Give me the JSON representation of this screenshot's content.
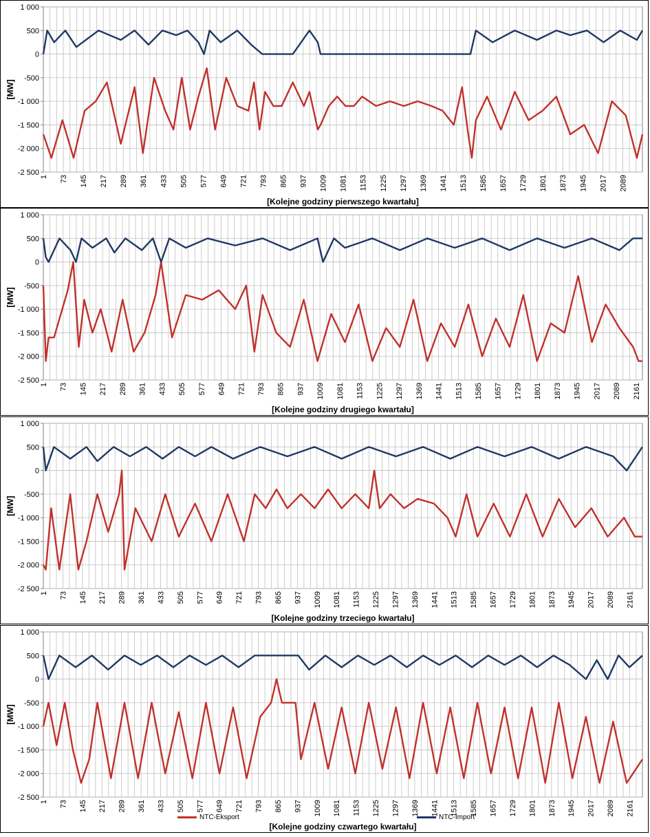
{
  "colors": {
    "export": "#C0312B",
    "import": "#1F3864",
    "grid": "#BFBFBF"
  },
  "chart_data": [
    {
      "type": "line",
      "title": "",
      "xlabel": "[Kolejne godziny pierwszego kwartału]",
      "ylabel": "[MW]",
      "ylim": [
        -2500,
        1000
      ],
      "yticks": [
        "1 000",
        "500",
        "0",
        "-500",
        "-1 000",
        "-1 500",
        "-2 000",
        "-2 500"
      ],
      "xlim": [
        1,
        2160
      ],
      "xtick_labels": [
        "1",
        "73",
        "145",
        "217",
        "289",
        "361",
        "433",
        "505",
        "577",
        "649",
        "721",
        "793",
        "865",
        "937",
        "1009",
        "1081",
        "1153",
        "1225",
        "1297",
        "1369",
        "1441",
        "1513",
        "1585",
        "1657",
        "1729",
        "1801",
        "1873",
        "1945",
        "2017",
        "2089"
      ],
      "grid": true,
      "legend": "bottom",
      "series": [
        {
          "name": "NTC-Eksport",
          "x": [
            1,
            30,
            70,
            110,
            150,
            190,
            230,
            280,
            330,
            360,
            400,
            440,
            470,
            500,
            530,
            560,
            590,
            620,
            660,
            700,
            740,
            760,
            780,
            800,
            830,
            860,
            900,
            940,
            960,
            990,
            1000,
            1030,
            1060,
            1090,
            1120,
            1150,
            1200,
            1250,
            1300,
            1350,
            1400,
            1440,
            1480,
            1510,
            1530,
            1545,
            1560,
            1600,
            1650,
            1700,
            1750,
            1800,
            1850,
            1900,
            1950,
            2000,
            2050,
            2100,
            2140,
            2160
          ],
          "values": [
            -1700,
            -2200,
            -1400,
            -2200,
            -1200,
            -1000,
            -600,
            -1900,
            -700,
            -2100,
            -500,
            -1200,
            -1600,
            -500,
            -1600,
            -900,
            -300,
            -1600,
            -500,
            -1100,
            -1200,
            -600,
            -1600,
            -800,
            -1100,
            -1100,
            -600,
            -1100,
            -800,
            -1600,
            -1500,
            -1100,
            -900,
            -1100,
            -1100,
            -900,
            -1100,
            -1000,
            -1100,
            -1000,
            -1100,
            -1200,
            -1500,
            -700,
            -1600,
            -2200,
            -1400,
            -900,
            -1600,
            -800,
            -1400,
            -1200,
            -900,
            -1700,
            -1500,
            -2100,
            -1000,
            -1300,
            -2200,
            -1700
          ]
        },
        {
          "name": "NTC-Import",
          "x": [
            1,
            15,
            40,
            80,
            120,
            200,
            280,
            330,
            380,
            430,
            480,
            520,
            560,
            580,
            600,
            640,
            700,
            750,
            790,
            810,
            900,
            960,
            990,
            1000,
            1060,
            1200,
            1400,
            1540,
            1560,
            1620,
            1700,
            1780,
            1850,
            1900,
            1960,
            2020,
            2080,
            2140,
            2160
          ],
          "values": [
            0,
            500,
            250,
            500,
            150,
            500,
            300,
            500,
            200,
            500,
            400,
            500,
            250,
            0,
            500,
            250,
            500,
            200,
            0,
            0,
            0,
            500,
            250,
            0,
            0,
            0,
            0,
            0,
            500,
            250,
            500,
            300,
            500,
            400,
            500,
            250,
            500,
            300,
            500
          ]
        }
      ]
    },
    {
      "type": "line",
      "title": "",
      "xlabel": "[Kolejne godziny drugiego kwartału]",
      "ylabel": "[MW]",
      "ylim": [
        -2500,
        1000
      ],
      "yticks": [
        "1 000",
        "500",
        "0",
        "-500",
        "-1 000",
        "-1 500",
        "-2 000",
        "-2 500"
      ],
      "xlim": [
        1,
        2184
      ],
      "xtick_labels": [
        "1",
        "73",
        "145",
        "217",
        "289",
        "361",
        "433",
        "505",
        "577",
        "649",
        "721",
        "793",
        "865",
        "937",
        "1009",
        "1081",
        "1153",
        "1225",
        "1297",
        "1369",
        "1441",
        "1513",
        "1585",
        "1657",
        "1729",
        "1801",
        "1873",
        "1945",
        "2017",
        "2089",
        "2161"
      ],
      "grid": true,
      "legend": "bottom",
      "series": [
        {
          "name": "NTC-Eksport",
          "x": [
            1,
            10,
            20,
            40,
            60,
            90,
            110,
            130,
            150,
            180,
            210,
            250,
            290,
            330,
            370,
            410,
            430,
            470,
            520,
            580,
            640,
            700,
            740,
            770,
            800,
            850,
            900,
            950,
            1000,
            1050,
            1100,
            1150,
            1200,
            1250,
            1300,
            1350,
            1400,
            1450,
            1500,
            1550,
            1600,
            1650,
            1700,
            1750,
            1800,
            1850,
            1900,
            1950,
            2000,
            2050,
            2100,
            2150,
            2170,
            2184
          ],
          "values": [
            -500,
            -2100,
            -1600,
            -1600,
            -1200,
            -600,
            0,
            -1800,
            -800,
            -1500,
            -1000,
            -1900,
            -800,
            -1900,
            -1500,
            -700,
            0,
            -1600,
            -700,
            -800,
            -600,
            -1000,
            -500,
            -1900,
            -700,
            -1500,
            -1800,
            -800,
            -2100,
            -1100,
            -1700,
            -900,
            -2100,
            -1400,
            -1800,
            -800,
            -2100,
            -1300,
            -1800,
            -900,
            -2000,
            -1200,
            -1800,
            -700,
            -2100,
            -1300,
            -1500,
            -300,
            -1700,
            -900,
            -1400,
            -1800,
            -2100,
            -2100
          ]
        },
        {
          "name": "NTC-Import",
          "x": [
            1,
            10,
            20,
            60,
            100,
            120,
            140,
            180,
            230,
            260,
            300,
            360,
            400,
            430,
            460,
            520,
            600,
            700,
            800,
            900,
            1000,
            1020,
            1060,
            1100,
            1200,
            1300,
            1400,
            1500,
            1600,
            1700,
            1800,
            1900,
            2000,
            2100,
            2150,
            2184
          ],
          "values": [
            500,
            100,
            0,
            500,
            250,
            0,
            500,
            300,
            500,
            200,
            500,
            250,
            500,
            0,
            500,
            300,
            500,
            350,
            500,
            250,
            500,
            0,
            500,
            300,
            500,
            250,
            500,
            300,
            500,
            250,
            500,
            300,
            500,
            250,
            500,
            500
          ]
        }
      ]
    },
    {
      "type": "line",
      "title": "",
      "xlabel": "[Kolejne godziny trzeciego kwartału]",
      "ylabel": "[MW]",
      "ylim": [
        -2500,
        1000
      ],
      "yticks": [
        "1 000",
        "500",
        "0",
        "-500",
        "-1 000",
        "-1 500",
        "-2 000",
        "-2 500"
      ],
      "xlim": [
        1,
        2208
      ],
      "xtick_labels": [
        "1",
        "73",
        "145",
        "217",
        "289",
        "361",
        "433",
        "505",
        "577",
        "649",
        "721",
        "793",
        "865",
        "937",
        "1009",
        "1081",
        "1153",
        "1225",
        "1297",
        "1369",
        "1441",
        "1513",
        "1585",
        "1657",
        "1729",
        "1801",
        "1873",
        "1945",
        "2017",
        "2089",
        "2161"
      ],
      "grid": true,
      "legend": "bottom",
      "series": [
        {
          "name": "NTC-Eksport",
          "x": [
            1,
            10,
            30,
            60,
            100,
            130,
            160,
            200,
            240,
            280,
            290,
            300,
            340,
            400,
            450,
            500,
            560,
            620,
            680,
            740,
            780,
            820,
            860,
            900,
            950,
            1000,
            1050,
            1100,
            1150,
            1200,
            1220,
            1240,
            1280,
            1330,
            1380,
            1440,
            1490,
            1520,
            1560,
            1600,
            1660,
            1720,
            1780,
            1840,
            1900,
            1960,
            2020,
            2080,
            2140,
            2180,
            2208
          ],
          "values": [
            -2000,
            -2100,
            -800,
            -2100,
            -500,
            -2100,
            -1500,
            -500,
            -1300,
            -500,
            0,
            -2100,
            -800,
            -1500,
            -500,
            -1400,
            -700,
            -1500,
            -500,
            -1500,
            -500,
            -800,
            -400,
            -800,
            -500,
            -800,
            -400,
            -800,
            -500,
            -800,
            0,
            -800,
            -500,
            -800,
            -600,
            -700,
            -1000,
            -1400,
            -500,
            -1400,
            -700,
            -1400,
            -500,
            -1400,
            -600,
            -1200,
            -800,
            -1400,
            -1000,
            -1400,
            -1400
          ]
        },
        {
          "name": "NTC-Import",
          "x": [
            1,
            10,
            40,
            100,
            160,
            200,
            260,
            320,
            380,
            440,
            500,
            560,
            620,
            700,
            800,
            900,
            1000,
            1100,
            1200,
            1300,
            1400,
            1500,
            1600,
            1700,
            1800,
            1900,
            2000,
            2100,
            2150,
            2208
          ],
          "values": [
            500,
            0,
            500,
            250,
            500,
            200,
            500,
            300,
            500,
            250,
            500,
            300,
            500,
            250,
            500,
            300,
            500,
            250,
            500,
            300,
            500,
            250,
            500,
            300,
            500,
            250,
            500,
            300,
            0,
            500
          ]
        }
      ]
    },
    {
      "type": "line",
      "title": "",
      "xlabel": "[Kolejne godziny czwartego kwartału]",
      "ylabel": "[MW]",
      "ylim": [
        -2500,
        1000
      ],
      "yticks": [
        "1 000",
        "500",
        "0",
        "-500",
        "-1 000",
        "-1 500",
        "-2 000",
        "-2 500"
      ],
      "xlim": [
        1,
        2208
      ],
      "xtick_labels": [
        "1",
        "73",
        "145",
        "217",
        "289",
        "361",
        "433",
        "505",
        "577",
        "649",
        "721",
        "793",
        "865",
        "937",
        "1009",
        "1081",
        "1153",
        "1225",
        "1297",
        "1369",
        "1441",
        "1513",
        "1585",
        "1657",
        "1729",
        "1801",
        "1873",
        "1945",
        "2017",
        "2089",
        "2161"
      ],
      "grid": true,
      "legend": "bottom",
      "series": [
        {
          "name": "NTC-Eksport",
          "x": [
            1,
            20,
            50,
            80,
            110,
            140,
            170,
            200,
            250,
            300,
            350,
            400,
            450,
            500,
            550,
            600,
            650,
            700,
            750,
            800,
            840,
            860,
            880,
            900,
            930,
            950,
            1000,
            1050,
            1100,
            1150,
            1200,
            1250,
            1300,
            1350,
            1400,
            1450,
            1500,
            1550,
            1600,
            1650,
            1700,
            1750,
            1800,
            1850,
            1900,
            1950,
            2000,
            2050,
            2100,
            2150,
            2208
          ],
          "values": [
            -1000,
            -500,
            -1400,
            -500,
            -1500,
            -2200,
            -1700,
            -500,
            -2100,
            -500,
            -2100,
            -500,
            -2000,
            -700,
            -2100,
            -500,
            -2000,
            -600,
            -2100,
            -800,
            -500,
            0,
            -500,
            -500,
            -500,
            -1700,
            -500,
            -1900,
            -600,
            -2000,
            -500,
            -1900,
            -600,
            -2100,
            -500,
            -2000,
            -600,
            -2100,
            -500,
            -2000,
            -600,
            -2100,
            -600,
            -2200,
            -500,
            -2100,
            -800,
            -2200,
            -900,
            -2200,
            -1700
          ]
        },
        {
          "name": "NTC-Import",
          "x": [
            1,
            20,
            60,
            120,
            180,
            240,
            300,
            360,
            420,
            480,
            540,
            600,
            660,
            720,
            780,
            820,
            860,
            900,
            940,
            980,
            1040,
            1100,
            1160,
            1220,
            1280,
            1340,
            1400,
            1460,
            1520,
            1580,
            1640,
            1700,
            1760,
            1820,
            1880,
            1940,
            2000,
            2040,
            2080,
            2120,
            2160,
            2208
          ],
          "values": [
            500,
            0,
            500,
            250,
            500,
            200,
            500,
            300,
            500,
            250,
            500,
            300,
            500,
            250,
            500,
            500,
            500,
            500,
            500,
            200,
            500,
            250,
            500,
            300,
            500,
            250,
            500,
            300,
            500,
            250,
            500,
            300,
            500,
            250,
            500,
            300,
            0,
            400,
            0,
            500,
            250,
            500
          ]
        }
      ]
    }
  ]
}
